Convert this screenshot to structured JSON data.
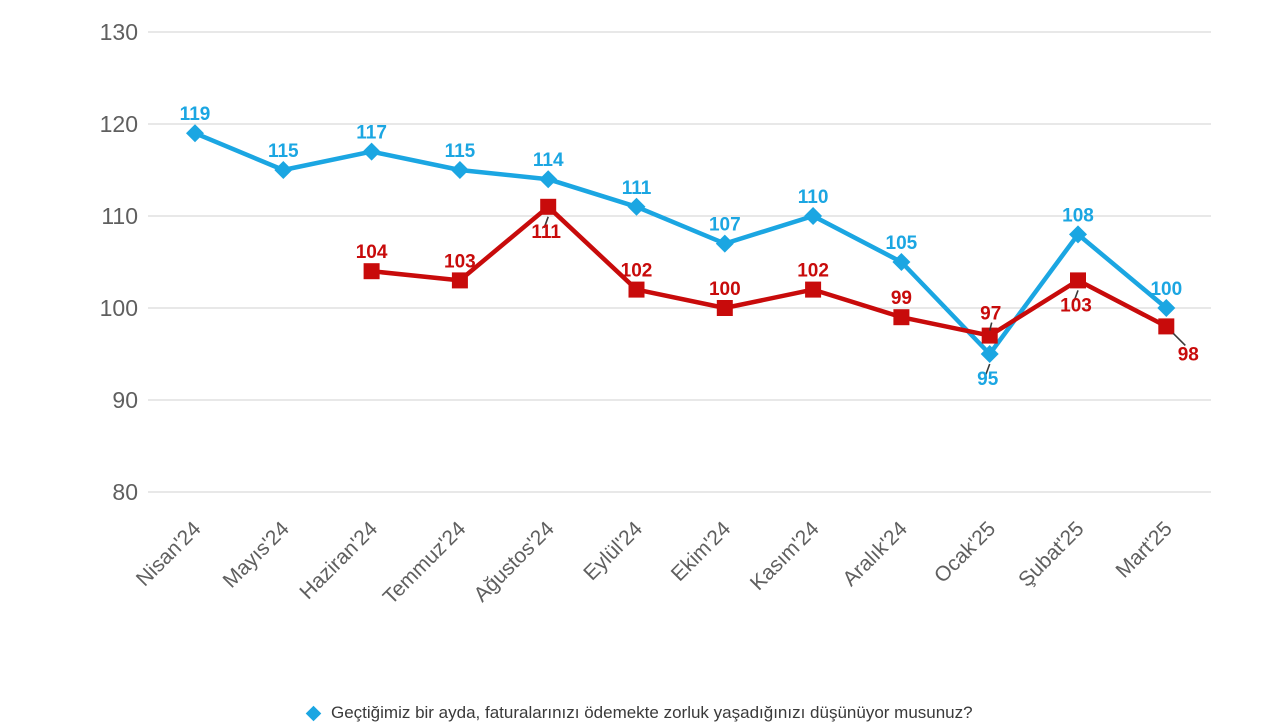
{
  "chart_data": {
    "type": "line",
    "title": "",
    "xlabel": "",
    "ylabel": "",
    "categories": [
      "Nisan'24",
      "Mayıs'24",
      "Haziran'24",
      "Temmuz'24",
      "Ağustos'24",
      "Eylül'24",
      "Ekim'24",
      "Kasım'24",
      "Aralık'24",
      "Ocak'25",
      "Şubat'25",
      "Mart'25"
    ],
    "ylim": [
      80,
      130
    ],
    "yticks": [
      80,
      90,
      100,
      110,
      120,
      130
    ],
    "grid": true,
    "legend_position": "bottom",
    "series": [
      {
        "name": "Geçtiğimiz bir ayda, faturalarınızı ödemekte zorluk yaşadığınızı düşünüyor musunuz?",
        "color": "#1BA6E2",
        "marker": "diamond",
        "values": [
          119,
          115,
          117,
          115,
          114,
          111,
          107,
          110,
          105,
          95,
          108,
          100
        ],
        "label_placements": [
          "a",
          "a",
          "a",
          "a",
          "a",
          "a",
          "a",
          "a",
          "a",
          "bl",
          "a",
          "a"
        ]
      },
      {
        "name": "",
        "color": "#C80B0B",
        "marker": "square",
        "values": [
          null,
          null,
          104,
          103,
          111,
          102,
          100,
          102,
          99,
          97,
          103,
          98
        ],
        "label_placements": [
          null,
          null,
          "a",
          "a",
          "bl",
          "a",
          "a",
          "a",
          "a",
          "al",
          "bl",
          "brl"
        ]
      }
    ],
    "colors": {
      "gridline": "#D9D9D9",
      "axis_text": "#5f5f5f",
      "leader_line": "#3a3a3a",
      "background": "#ffffff"
    }
  }
}
